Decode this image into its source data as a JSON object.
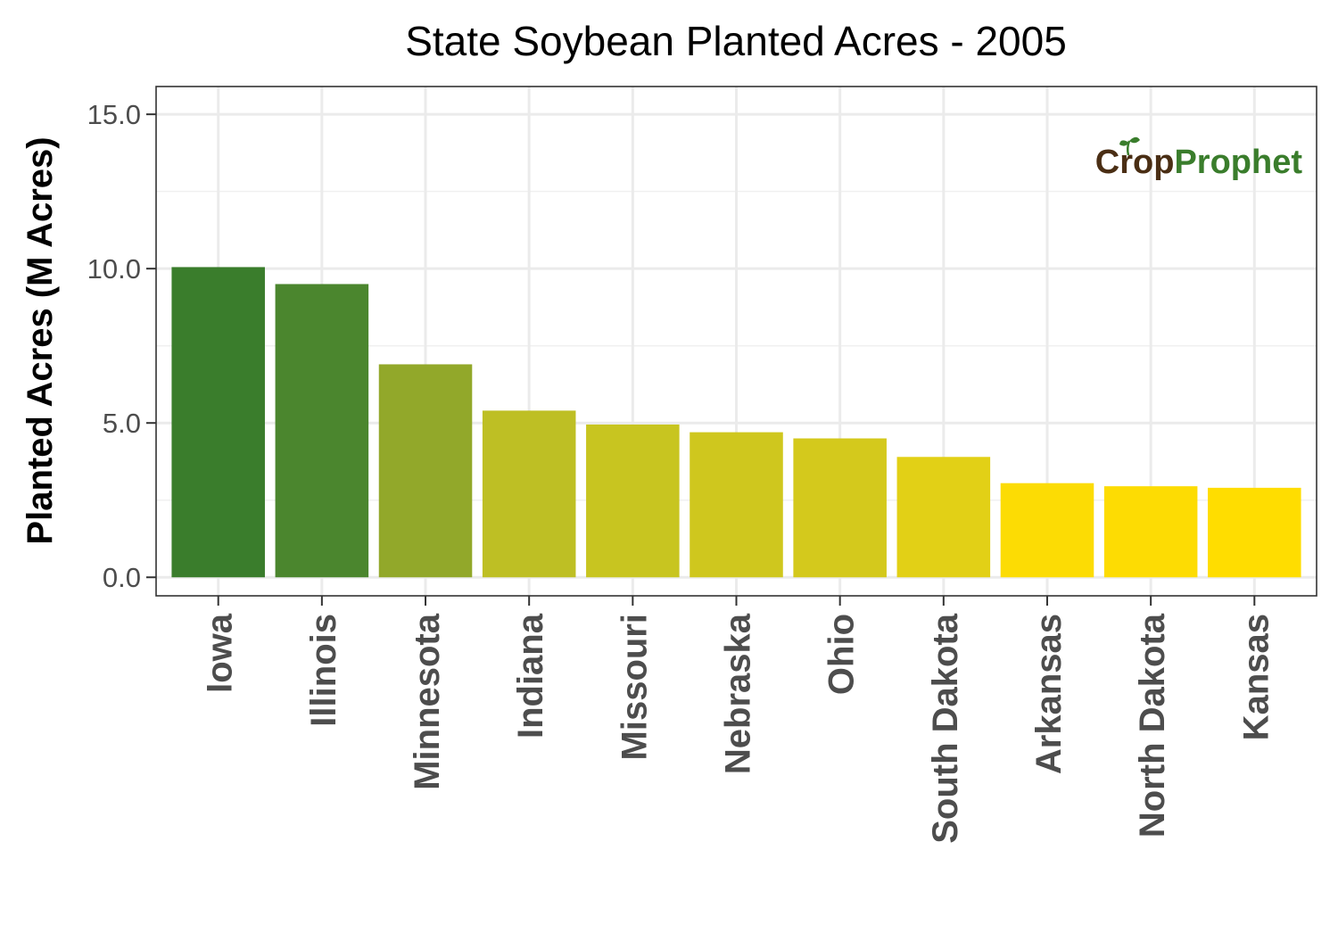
{
  "chart_data": {
    "type": "bar",
    "title": "State Soybean Planted Acres - 2005",
    "xlabel": "",
    "ylabel": "Planted Acres (M Acres)",
    "ylim": [
      -0.6,
      15.9
    ],
    "yticks": [
      0,
      5,
      10,
      15
    ],
    "ytick_labels": [
      "0.0",
      "5.0",
      "10.0",
      "15.0"
    ],
    "grid": true,
    "legend": "none",
    "categories": [
      "Iowa",
      "Illinois",
      "Minnesota",
      "Indiana",
      "Missouri",
      "Nebraska",
      "Ohio",
      "South Dakota",
      "Arkansas",
      "North Dakota",
      "Kansas"
    ],
    "values": [
      10.05,
      9.5,
      6.9,
      5.4,
      4.95,
      4.7,
      4.5,
      3.9,
      3.05,
      2.95,
      2.9
    ],
    "colors": [
      "#3a7d2c",
      "#4b862e",
      "#92a82a",
      "#bebf24",
      "#c8c520",
      "#cfc71e",
      "#d4c91c",
      "#e2d016",
      "#fcdc04",
      "#fddc03",
      "#ffdd00"
    ]
  },
  "brand": {
    "logo_text_part1": "Crop",
    "logo_text_part2": "Prophet",
    "logo_color_part1": "#4a2e14",
    "logo_color_part2": "#3a7d2c"
  }
}
